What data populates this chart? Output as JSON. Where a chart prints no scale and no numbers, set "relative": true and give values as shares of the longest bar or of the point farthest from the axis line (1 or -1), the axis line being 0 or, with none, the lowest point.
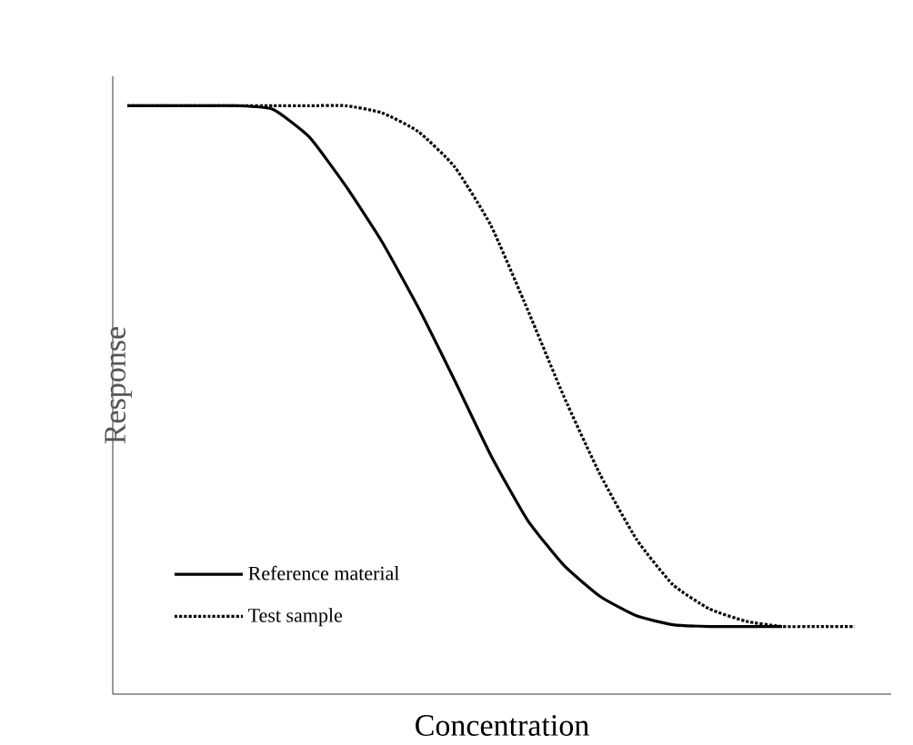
{
  "chart_data": {
    "type": "line",
    "xlabel": "Concentration",
    "ylabel": "Response",
    "relative": true,
    "legend": "bottom left",
    "categories": [
      null,
      null,
      null,
      null,
      null,
      null,
      null,
      null,
      null,
      null,
      null,
      null,
      null,
      null,
      null,
      null,
      null,
      null,
      null,
      null,
      null
    ],
    "series": [
      {
        "name": "Reference material",
        "color": "#000000",
        "line_style": "solid",
        "values": [
          1,
          1,
          1,
          1,
          0.994,
          0.947,
          0.864,
          0.769,
          0.657,
          0.533,
          0.405,
          0.296,
          0.219,
          0.166,
          0.133,
          0.118,
          0.115,
          0.115,
          0.115,
          null,
          null
        ]
      },
      {
        "name": "Test sample",
        "color": "#000000",
        "line_style": "dotted",
        "values": [
          1,
          1,
          1,
          1,
          1,
          1,
          1,
          0.988,
          0.956,
          0.896,
          0.796,
          0.654,
          0.506,
          0.373,
          0.263,
          0.186,
          0.145,
          0.124,
          0.115,
          0.115,
          0.115
        ]
      }
    ]
  }
}
